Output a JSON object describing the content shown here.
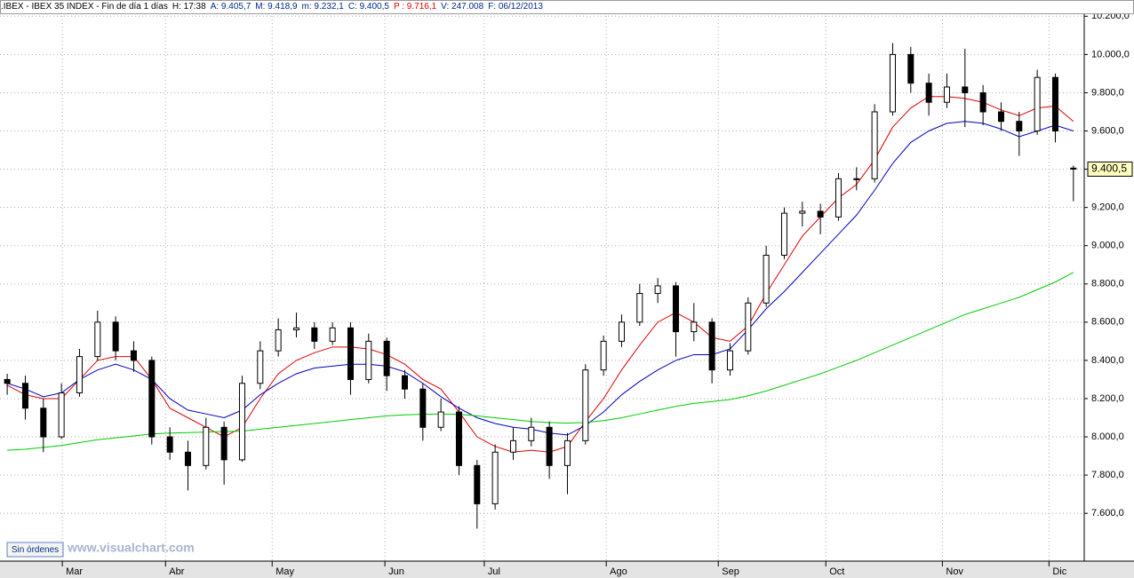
{
  "chart_data": {
    "type": "candlestick",
    "header": {
      "symbol": ".IBEX - IBEX 35 INDEX - Fin de día 1 días",
      "time": "H: 17:38",
      "open": "A: 9.405,7",
      "high": "M: 9.418,9",
      "low": "m: 9.232,1",
      "close": "C: 9.400,5",
      "prev": "P : 9.716,1",
      "volume": "V: 247.008",
      "date": "F: 06/12/2013"
    },
    "open": [
      8300,
      8280,
      8150,
      8000,
      8230,
      8420,
      8600,
      8450,
      8400,
      8000,
      7920,
      7850,
      8050,
      7880,
      8280,
      8450,
      8560,
      8570,
      8500,
      8570,
      8300,
      8500,
      8320,
      8250,
      8050,
      8130,
      7850,
      7650,
      7920,
      7980,
      8050,
      7850,
      7980,
      8350,
      8500,
      8600,
      8750,
      8790,
      8550,
      8600,
      8350,
      8450,
      8700,
      8950,
      9170,
      9180,
      9150,
      9350,
      9350,
      9700,
      10000,
      9850,
      9750,
      9830,
      9800,
      9700,
      9650,
      9600,
      9880,
      9405.7
    ],
    "high": [
      8330,
      8320,
      8200,
      8280,
      8460,
      8660,
      8630,
      8500,
      8420,
      8050,
      7980,
      8100,
      8080,
      8320,
      8500,
      8620,
      8650,
      8600,
      8600,
      8600,
      8540,
      8520,
      8350,
      8280,
      8200,
      8160,
      7880,
      7960,
      8050,
      8100,
      8080,
      8020,
      8380,
      8530,
      8640,
      8800,
      8830,
      8810,
      8700,
      8620,
      8490,
      8730,
      9000,
      9200,
      9230,
      9220,
      9380,
      9410,
      9740,
      10060,
      10040,
      9900,
      9900,
      10030,
      9840,
      9750,
      9700,
      9920,
      9900,
      9418.9
    ],
    "low": [
      8220,
      8090,
      7920,
      7990,
      8210,
      8400,
      8400,
      8340,
      7960,
      7880,
      7720,
      7830,
      7750,
      7870,
      8250,
      8420,
      8520,
      8460,
      8480,
      8220,
      8280,
      8240,
      8200,
      7980,
      8030,
      7800,
      7520,
      7620,
      7880,
      7950,
      7780,
      7700,
      7960,
      8320,
      8470,
      8580,
      8700,
      8420,
      8500,
      8280,
      8320,
      8430,
      8680,
      8930,
      9100,
      9060,
      9130,
      9290,
      9330,
      9680,
      9800,
      9680,
      9720,
      9620,
      9630,
      9600,
      9470,
      9580,
      9540,
      9232.1
    ],
    "close": [
      8280,
      8150,
      8000,
      8230,
      8420,
      8600,
      8450,
      8400,
      8000,
      7920,
      7850,
      8050,
      7880,
      8280,
      8450,
      8560,
      8570,
      8500,
      8570,
      8300,
      8500,
      8320,
      8250,
      8050,
      8130,
      7850,
      7650,
      7920,
      7980,
      8050,
      7850,
      7980,
      8350,
      8500,
      8600,
      8750,
      8790,
      8550,
      8600,
      8350,
      8450,
      8700,
      8950,
      9170,
      9180,
      9150,
      9350,
      9350,
      9700,
      10000,
      9850,
      9750,
      9830,
      9800,
      9700,
      9650,
      9600,
      9880,
      9600,
      9400.5
    ],
    "series": [
      {
        "color": "#e00000",
        "values": [
          8270,
          8220,
          8200,
          8200,
          8300,
          8400,
          8420,
          8420,
          8300,
          8150,
          8100,
          8050,
          8000,
          8050,
          8200,
          8330,
          8400,
          8440,
          8470,
          8470,
          8460,
          8430,
          8380,
          8300,
          8250,
          8130,
          8000,
          7950,
          7920,
          7930,
          7920,
          7950,
          8080,
          8200,
          8350,
          8480,
          8600,
          8650,
          8600,
          8520,
          8500,
          8580,
          8750,
          8900,
          9050,
          9150,
          9250,
          9320,
          9450,
          9620,
          9720,
          9780,
          9780,
          9770,
          9750,
          9710,
          9680,
          9720,
          9730,
          9650
        ]
      },
      {
        "color": "#0000c0",
        "values": [
          8280,
          8250,
          8210,
          8230,
          8300,
          8350,
          8380,
          8350,
          8300,
          8200,
          8140,
          8120,
          8100,
          8140,
          8220,
          8280,
          8330,
          8360,
          8370,
          8380,
          8380,
          8370,
          8340,
          8280,
          8210,
          8150,
          8100,
          8070,
          8050,
          8040,
          8020,
          8010,
          8060,
          8130,
          8220,
          8290,
          8350,
          8400,
          8430,
          8430,
          8460,
          8560,
          8670,
          8760,
          8860,
          8960,
          9060,
          9160,
          9290,
          9430,
          9540,
          9600,
          9640,
          9650,
          9640,
          9610,
          9570,
          9600,
          9630,
          9600
        ]
      },
      {
        "color": "#00cc00",
        "values": [
          7930,
          7935,
          7945,
          7955,
          7970,
          7985,
          7995,
          8005,
          8015,
          8020,
          8022,
          8025,
          8028,
          8030,
          8040,
          8050,
          8060,
          8070,
          8080,
          8090,
          8100,
          8110,
          8115,
          8118,
          8120,
          8118,
          8110,
          8100,
          8090,
          8080,
          8075,
          8072,
          8075,
          8085,
          8100,
          8120,
          8140,
          8160,
          8175,
          8185,
          8195,
          8215,
          8240,
          8270,
          8300,
          8330,
          8365,
          8400,
          8440,
          8480,
          8520,
          8560,
          8600,
          8640,
          8670,
          8700,
          8730,
          8770,
          8810,
          8860
        ]
      }
    ],
    "xlim": [
      -0.4,
      59.6
    ],
    "xticks": [
      {
        "value": 3.05,
        "label": "Mar"
      },
      {
        "value": 8.76,
        "label": "Abr"
      },
      {
        "value": 14.66,
        "label": "May"
      },
      {
        "value": 20.9,
        "label": "Jun"
      },
      {
        "value": 26.4,
        "label": "Jul"
      },
      {
        "value": 33.15,
        "label": "Ago"
      },
      {
        "value": 39.35,
        "label": "Sep"
      },
      {
        "value": 45.3,
        "label": "Oct"
      },
      {
        "value": 51.75,
        "label": "Nov"
      },
      {
        "value": 57.65,
        "label": "Dic"
      }
    ],
    "ylim": [
      7350,
      10220
    ],
    "yticks": [
      {
        "value": 7600,
        "label": "7.600,0"
      },
      {
        "value": 7800,
        "label": "7.800,0"
      },
      {
        "value": 8000,
        "label": "8.000,0"
      },
      {
        "value": 8200,
        "label": "8.200,0"
      },
      {
        "value": 8400,
        "label": "8.400,0"
      },
      {
        "value": 8600,
        "label": "8.600,0"
      },
      {
        "value": 8800,
        "label": "8.800,0"
      },
      {
        "value": 9000,
        "label": "9.000,0"
      },
      {
        "value": 9200,
        "label": "9.200,0"
      },
      {
        "value": 9400,
        "label": "9.400,0"
      },
      {
        "value": 9600,
        "label": "9.600,0"
      },
      {
        "value": 9800,
        "label": "9.800,0"
      },
      {
        "value": 10000,
        "label": "10.000,0"
      },
      {
        "value": 10200,
        "label": "10.200,0"
      }
    ],
    "last_price": {
      "value": 9400.5,
      "label": "9.400,5"
    },
    "grid": true,
    "status": "Sin órdenes",
    "watermark": "www.visualchart.com"
  }
}
